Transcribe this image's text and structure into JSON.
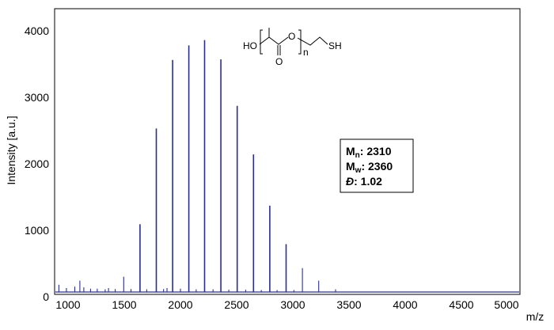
{
  "chart_data": {
    "type": "line",
    "title": "",
    "xlabel": "m/z",
    "ylabel": "Intensity [a.u.]",
    "xlim": [
      900,
      5000
    ],
    "ylim": [
      0,
      4000
    ],
    "xticks": [
      "1000",
      "1500",
      "2000",
      "2500",
      "3000",
      "3500",
      "4000",
      "4500",
      "5000"
    ],
    "yticks": [
      "0",
      "1000",
      "2000",
      "3000",
      "4000"
    ],
    "grid": false,
    "series": [
      {
        "color": "#2b2f8c",
        "peaks": [
          {
            "x": 918,
            "y": 110
          },
          {
            "x": 985,
            "y": 60
          },
          {
            "x": 1060,
            "y": 80
          },
          {
            "x": 1105,
            "y": 170
          },
          {
            "x": 1140,
            "y": 70
          },
          {
            "x": 1200,
            "y": 50
          },
          {
            "x": 1260,
            "y": 50
          },
          {
            "x": 1330,
            "y": 40
          },
          {
            "x": 1360,
            "y": 60
          },
          {
            "x": 1420,
            "y": 45
          },
          {
            "x": 1495,
            "y": 230
          },
          {
            "x": 1560,
            "y": 45
          },
          {
            "x": 1640,
            "y": 1020
          },
          {
            "x": 1700,
            "y": 40
          },
          {
            "x": 1785,
            "y": 2460
          },
          {
            "x": 1850,
            "y": 45
          },
          {
            "x": 1880,
            "y": 60
          },
          {
            "x": 1930,
            "y": 3490
          },
          {
            "x": 2000,
            "y": 50
          },
          {
            "x": 2075,
            "y": 3710
          },
          {
            "x": 2140,
            "y": 40
          },
          {
            "x": 2215,
            "y": 3790
          },
          {
            "x": 2290,
            "y": 40
          },
          {
            "x": 2360,
            "y": 3500
          },
          {
            "x": 2430,
            "y": 35
          },
          {
            "x": 2505,
            "y": 2800
          },
          {
            "x": 2580,
            "y": 35
          },
          {
            "x": 2650,
            "y": 2070
          },
          {
            "x": 2720,
            "y": 30
          },
          {
            "x": 2795,
            "y": 1300
          },
          {
            "x": 2860,
            "y": 30
          },
          {
            "x": 2940,
            "y": 720
          },
          {
            "x": 3010,
            "y": 30
          },
          {
            "x": 3085,
            "y": 360
          },
          {
            "x": 3230,
            "y": 170
          },
          {
            "x": 3380,
            "y": 40
          }
        ]
      }
    ]
  },
  "stats_box": {
    "mn_symbol": "M",
    "mn_sub": "n",
    "mn_value": ": 2310",
    "mw_symbol": "M",
    "mw_sub": "w",
    "mw_value": ": 2360",
    "d_symbol": "Đ",
    "d_value": ": 1.02"
  },
  "structure": {
    "ho": "HO",
    "o_carbonyl": "O",
    "o_ester": "O",
    "n": "n",
    "sh": "SH"
  }
}
